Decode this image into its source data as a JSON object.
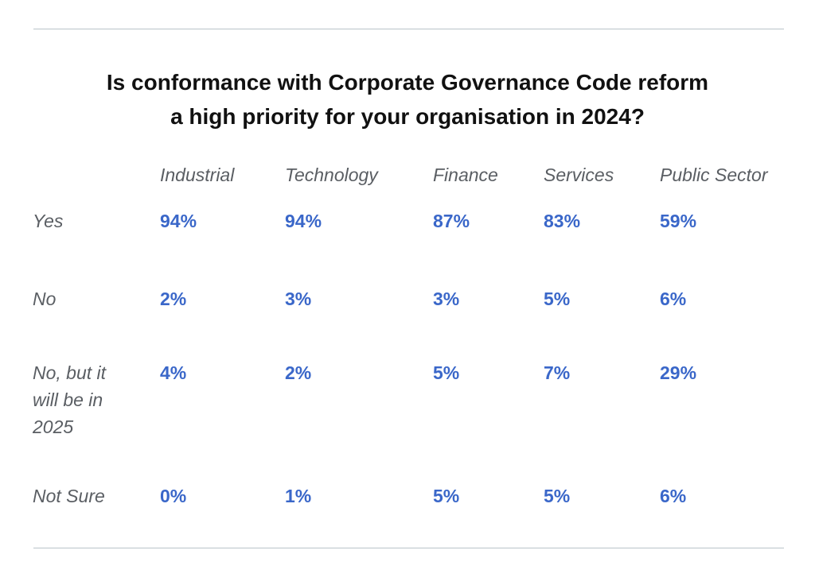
{
  "chart_data": {
    "type": "table",
    "title": "Is conformance with Corporate Governance Code reform a high priority for your organisation in 2024?",
    "title_lines": [
      "Is conformance with Corporate Governance Code reform",
      "a high priority for your organisation in 2024?"
    ],
    "columns": [
      "Industrial",
      "Technology",
      "Finance",
      "Services",
      "Public Sector"
    ],
    "rows": [
      {
        "label": "Yes",
        "values": [
          "94%",
          "94%",
          "87%",
          "83%",
          "59%"
        ]
      },
      {
        "label": "No",
        "values": [
          "2%",
          "3%",
          "3%",
          "5%",
          "6%"
        ]
      },
      {
        "label": "No, but it will be in 2025",
        "values": [
          "4%",
          "2%",
          "5%",
          "7%",
          "29%"
        ]
      },
      {
        "label": "Not Sure",
        "values": [
          "0%",
          "1%",
          "5%",
          "5%",
          "6%"
        ]
      }
    ],
    "colors": {
      "value": "#3a67c9",
      "label": "#5a5e63",
      "title": "#111111",
      "rule": "#b9c3c9"
    }
  }
}
